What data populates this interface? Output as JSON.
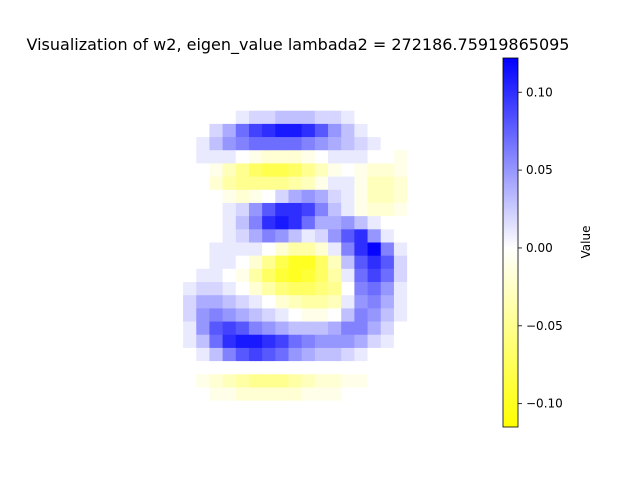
{
  "chart_data": {
    "type": "heatmap",
    "title": "Visualization of w2, eigen_value lambada2 = 272186.75919865095",
    "colorbar": {
      "label": "Value",
      "range": [
        -0.115,
        0.122
      ],
      "ticks": [
        0.1,
        0.05,
        0.0,
        -0.05,
        -0.1
      ],
      "tick_labels": [
        "0.10",
        "0.05",
        "0.00",
        "−0.05",
        "−0.10"
      ],
      "colors": {
        "min": "#ffff00",
        "mid": "#ffffff",
        "max": "#0000ff"
      }
    },
    "grid": {
      "rows": 28,
      "cols": 28
    },
    "axes_visible": false,
    "values": [
      [
        0,
        0,
        0,
        0,
        0,
        0,
        0,
        0,
        0,
        0,
        0,
        0,
        0,
        0,
        0,
        0,
        0,
        0,
        0,
        0,
        0,
        0,
        0,
        0,
        0,
        0,
        0,
        0
      ],
      [
        0,
        0,
        0,
        0,
        0,
        0,
        0,
        0,
        0,
        0,
        0,
        0,
        0,
        0,
        0,
        0,
        0,
        0,
        0,
        0,
        0,
        0,
        0,
        0,
        0,
        0,
        0,
        0
      ],
      [
        0,
        0,
        0,
        0,
        0,
        0,
        0,
        0,
        0,
        0,
        0,
        0,
        0,
        0,
        0,
        0,
        0,
        0,
        0,
        0,
        0,
        0,
        0,
        0,
        0,
        0,
        0,
        0
      ],
      [
        0,
        0,
        0,
        0,
        0,
        0,
        0,
        0,
        0,
        0,
        0,
        0,
        0,
        0,
        0,
        0,
        0,
        0,
        0,
        0,
        0,
        0,
        0,
        0,
        0,
        0,
        0,
        0
      ],
      [
        0,
        0,
        0,
        0,
        0,
        0,
        0,
        0,
        0,
        0,
        0.01,
        0.02,
        0.02,
        0.03,
        0.03,
        0.03,
        0.02,
        0.02,
        0.01,
        0,
        0,
        0,
        0,
        0,
        0,
        0,
        0,
        0
      ],
      [
        0,
        0,
        0,
        0,
        0,
        0,
        0,
        0,
        0.02,
        0.04,
        0.07,
        0.09,
        0.1,
        0.11,
        0.11,
        0.1,
        0.08,
        0.05,
        0.03,
        0.01,
        0,
        0,
        0,
        0,
        0,
        0,
        0,
        0
      ],
      [
        0,
        0,
        0,
        0,
        0,
        0,
        0,
        0.01,
        0.03,
        0.05,
        0.06,
        0.07,
        0.07,
        0.07,
        0.07,
        0.06,
        0.05,
        0.04,
        0.03,
        0.02,
        0.01,
        0,
        0,
        0,
        0,
        0,
        0,
        0
      ],
      [
        0,
        0,
        0,
        0,
        0,
        0,
        0,
        0.01,
        0.01,
        0.01,
        0,
        -0.01,
        -0.02,
        -0.02,
        -0.02,
        -0.01,
        0,
        0.01,
        0.01,
        0.01,
        0,
        0,
        -0.01,
        0,
        0,
        0,
        0,
        0
      ],
      [
        0,
        0,
        0,
        0,
        0,
        0,
        0,
        0,
        -0.01,
        -0.03,
        -0.05,
        -0.07,
        -0.08,
        -0.08,
        -0.07,
        -0.05,
        -0.03,
        -0.01,
        0,
        -0.01,
        -0.02,
        -0.02,
        -0.01,
        0,
        0,
        0,
        0,
        0
      ],
      [
        0,
        0,
        0,
        0,
        0,
        0,
        0,
        0,
        -0.02,
        -0.04,
        -0.05,
        -0.05,
        -0.05,
        -0.05,
        -0.04,
        -0.03,
        -0.01,
        0.01,
        0.01,
        -0.01,
        -0.03,
        -0.03,
        -0.02,
        0,
        0,
        0,
        0,
        0
      ],
      [
        0,
        0,
        0,
        0,
        0,
        0,
        0,
        0,
        0,
        -0.01,
        -0.02,
        -0.01,
        0,
        0.02,
        0.04,
        0.05,
        0.04,
        0.02,
        0.01,
        -0.01,
        -0.03,
        -0.03,
        -0.02,
        0,
        0,
        0,
        0,
        0
      ],
      [
        0,
        0,
        0,
        0,
        0,
        0,
        0,
        0,
        0,
        0.01,
        0.02,
        0.05,
        0.08,
        0.1,
        0.1,
        0.09,
        0.06,
        0.03,
        0.01,
        -0.01,
        -0.02,
        -0.02,
        -0.01,
        0,
        0,
        0,
        0,
        0
      ],
      [
        0,
        0,
        0,
        0,
        0,
        0,
        0,
        0,
        0,
        0.01,
        0.03,
        0.06,
        0.1,
        0.11,
        0.1,
        0.07,
        0.04,
        0.04,
        0.05,
        0.03,
        0.01,
        0,
        0,
        0,
        0,
        0,
        0,
        0
      ],
      [
        0,
        0,
        0,
        0,
        0,
        0,
        0,
        0,
        0,
        0.01,
        0.02,
        0.04,
        0.06,
        0.05,
        0.03,
        0.01,
        0.02,
        0.05,
        0.08,
        0.1,
        0.05,
        0.01,
        0,
        0,
        0,
        0,
        0,
        0
      ],
      [
        0,
        0,
        0,
        0,
        0,
        0,
        0,
        0,
        0.01,
        0.01,
        0.01,
        0.01,
        0,
        -0.02,
        -0.04,
        -0.04,
        -0.02,
        0.01,
        0.06,
        0.1,
        0.12,
        0.06,
        0.01,
        0,
        0,
        0,
        0,
        0
      ],
      [
        0,
        0,
        0,
        0,
        0,
        0,
        0,
        0,
        0.01,
        0.01,
        0,
        -0.02,
        -0.05,
        -0.08,
        -0.1,
        -0.1,
        -0.07,
        -0.03,
        0.03,
        0.08,
        0.1,
        0.08,
        0.02,
        0,
        0,
        0,
        0,
        0
      ],
      [
        0,
        0,
        0,
        0,
        0,
        0,
        0,
        0.01,
        0.01,
        0,
        -0.01,
        -0.04,
        -0.07,
        -0.09,
        -0.1,
        -0.09,
        -0.07,
        -0.04,
        0.01,
        0.07,
        0.09,
        0.07,
        0.02,
        0,
        0,
        0,
        0,
        0
      ],
      [
        0,
        0,
        0,
        0,
        0,
        0,
        0.01,
        0.02,
        0.02,
        0.01,
        0,
        -0.02,
        -0.04,
        -0.06,
        -0.07,
        -0.07,
        -0.06,
        -0.05,
        0,
        0.06,
        0.07,
        0.05,
        0.01,
        0,
        0,
        0,
        0,
        0
      ],
      [
        0,
        0,
        0,
        0,
        0,
        0,
        0.02,
        0.04,
        0.04,
        0.03,
        0.02,
        0.01,
        0,
        -0.02,
        -0.03,
        -0.04,
        -0.04,
        -0.03,
        0.01,
        0.05,
        0.06,
        0.04,
        0.01,
        0,
        0,
        0,
        0,
        0
      ],
      [
        0,
        0,
        0,
        0,
        0,
        0,
        0.02,
        0.05,
        0.06,
        0.05,
        0.04,
        0.03,
        0.02,
        0.01,
        0,
        -0.01,
        -0.01,
        0,
        0.03,
        0.06,
        0.05,
        0.03,
        0.01,
        0,
        0,
        0,
        0,
        0
      ],
      [
        0,
        0,
        0,
        0,
        0,
        0,
        0.01,
        0.05,
        0.08,
        0.09,
        0.08,
        0.06,
        0.05,
        0.04,
        0.03,
        0.03,
        0.03,
        0.04,
        0.06,
        0.06,
        0.04,
        0.02,
        0,
        0,
        0,
        0,
        0,
        0
      ],
      [
        0,
        0,
        0,
        0,
        0,
        0,
        0.01,
        0.03,
        0.07,
        0.1,
        0.11,
        0.11,
        0.1,
        0.09,
        0.07,
        0.06,
        0.05,
        0.05,
        0.05,
        0.04,
        0.02,
        0.01,
        0,
        0,
        0,
        0,
        0,
        0
      ],
      [
        0,
        0,
        0,
        0,
        0,
        0,
        0,
        0.01,
        0.03,
        0.06,
        0.08,
        0.09,
        0.08,
        0.07,
        0.05,
        0.04,
        0.03,
        0.03,
        0.02,
        0.01,
        0,
        0,
        0,
        0,
        0,
        0,
        0,
        0
      ],
      [
        0,
        0,
        0,
        0,
        0,
        0,
        0,
        0,
        0,
        0,
        0,
        0,
        0,
        0,
        0,
        0,
        0,
        0,
        0,
        0,
        0,
        0,
        0,
        0,
        0,
        0,
        0,
        0
      ],
      [
        0,
        0,
        0,
        0,
        0,
        0,
        0,
        -0.01,
        -0.02,
        -0.03,
        -0.04,
        -0.05,
        -0.05,
        -0.05,
        -0.04,
        -0.03,
        -0.02,
        -0.02,
        -0.01,
        -0.01,
        0,
        0,
        0,
        0,
        0,
        0,
        0,
        0
      ],
      [
        0,
        0,
        0,
        0,
        0,
        0,
        0,
        0,
        -0.01,
        -0.01,
        -0.02,
        -0.02,
        -0.02,
        -0.02,
        -0.02,
        -0.01,
        -0.01,
        -0.01,
        0,
        0,
        0,
        0,
        0,
        0,
        0,
        0,
        0,
        0
      ],
      [
        0,
        0,
        0,
        0,
        0,
        0,
        0,
        0,
        0,
        0,
        0,
        0,
        0,
        0,
        0,
        0,
        0,
        0,
        0,
        0,
        0,
        0,
        0,
        0,
        0,
        0,
        0,
        0
      ],
      [
        0,
        0,
        0,
        0,
        0,
        0,
        0,
        0,
        0,
        0,
        0,
        0,
        0,
        0,
        0,
        0,
        0,
        0,
        0,
        0,
        0,
        0,
        0,
        0,
        0,
        0,
        0,
        0
      ]
    ]
  }
}
